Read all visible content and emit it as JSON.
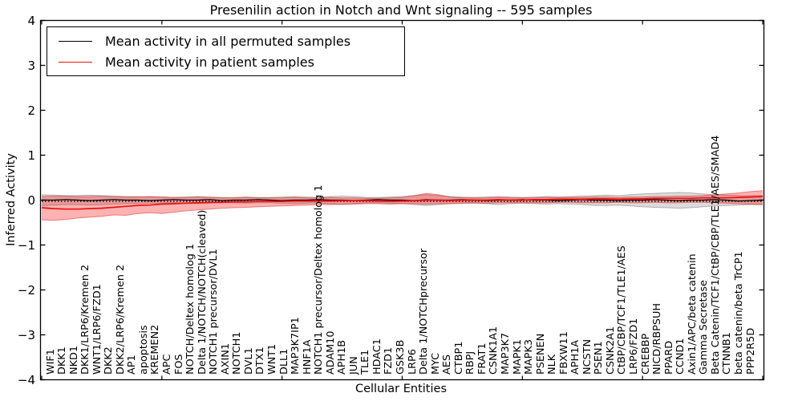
{
  "chart_data": {
    "type": "line",
    "title": "Presenilin action in Notch and Wnt signaling -- 595 samples",
    "xlabel": "Cellular Entities",
    "ylabel": "Inferred Activity",
    "ylim": [
      -4,
      4
    ],
    "ytick_labels": [
      "4",
      "3",
      "2",
      "1",
      "0",
      "−1",
      "−2",
      "−3",
      "−4"
    ],
    "grid": false,
    "legend_position": "upper left",
    "zero_line_style": "dotted",
    "categories": [
      "WIF1",
      "DKK1",
      "NKD1",
      "DKK1/LRP6/Kremen 2",
      "WNT1/LRP6/FZD1",
      "DKK2",
      "DKK2/LRP6/Kremen 2",
      "AP1",
      "apoptosis",
      "KREMEN2",
      "APC",
      "FOS",
      "NOTCH/Deltex homolog 1",
      "Delta 1/NOTCH/NOTCH(cleaved)",
      "NOTCH1 precursor/DVL1",
      "AXIN1",
      "NOTCH1",
      "DVL1",
      "DTX1",
      "WNT1",
      "DLL1",
      "MAP3K7IP1",
      "HNF1A",
      "NOTCH1 precursor/Deltex homolog 1",
      "ADAM10",
      "APH1B",
      "JUN",
      "TLE1",
      "HDAC1",
      "FZD1",
      "GSK3B",
      "LRP6",
      "Delta 1/NOTCHprecursor",
      "MYC",
      "AES",
      "CTBP1",
      "RBPJ",
      "FRAT1",
      "CSNK1A1",
      "MAP3K7",
      "MAPK1",
      "MAPK3",
      "PSENEN",
      "NLK",
      "FBXW11",
      "APH1A",
      "NCSTN",
      "PSEN1",
      "CSNK2A1",
      "CtBP/CBP/TCF1/TLE1/AES",
      "LRP6/FZD1",
      "CREBBP",
      "NICD/RBPSUH",
      "PPARD",
      "CCND1",
      "Axin1/APC/beta catenin",
      "Gamma Secretase",
      "Beta Catenin/TCF1/CtBP/CBP/TLE1/AES/SMAD4",
      "CTNNB1",
      "beta catenin/beta TrCP1",
      "PPP2R5D"
    ],
    "series": [
      {
        "name": "Mean activity in all permuted samples",
        "color": "#000000",
        "band_color": "rgba(0,0,0,0.14)",
        "band_edge_color": "rgba(0,0,0,0.25)",
        "values": [
          0.0,
          0.0,
          0.01,
          0.0,
          -0.01,
          0.0,
          0.01,
          0.0,
          0.0,
          -0.01,
          0.0,
          0.01,
          0.0,
          0.0,
          0.01,
          -0.01,
          0.0,
          0.0,
          0.01,
          0.0,
          -0.01,
          0.0,
          0.0,
          0.01,
          0.0,
          0.0,
          -0.01,
          0.0,
          0.01,
          0.0,
          0.0,
          -0.01,
          0.01,
          0.0,
          0.0,
          0.01,
          0.0,
          -0.01,
          0.0,
          0.0,
          0.01,
          0.0,
          0.0,
          -0.01,
          0.0,
          0.01,
          0.0,
          0.0,
          -0.01,
          0.0,
          0.0,
          0.01,
          0.0,
          -0.01,
          0.0,
          0.0,
          0.01,
          0.0,
          -0.02,
          -0.01,
          0.0
        ],
        "band_upper": [
          0.12,
          0.11,
          0.1,
          0.1,
          0.11,
          0.1,
          0.09,
          0.08,
          0.08,
          0.07,
          0.07,
          0.06,
          0.07,
          0.08,
          0.07,
          0.06,
          0.06,
          0.07,
          0.06,
          0.06,
          0.07,
          0.08,
          0.07,
          0.06,
          0.08,
          0.09,
          0.08,
          0.06,
          0.06,
          0.07,
          0.08,
          0.1,
          0.12,
          0.1,
          0.08,
          0.07,
          0.06,
          0.07,
          0.08,
          0.07,
          0.06,
          0.07,
          0.08,
          0.07,
          0.08,
          0.09,
          0.1,
          0.11,
          0.1,
          0.12,
          0.14,
          0.15,
          0.16,
          0.17,
          0.16,
          0.14,
          0.12,
          0.11,
          0.1,
          0.1,
          0.1
        ],
        "band_lower": [
          -0.12,
          -0.11,
          -0.1,
          -0.1,
          -0.11,
          -0.1,
          -0.09,
          -0.08,
          -0.08,
          -0.07,
          -0.07,
          -0.06,
          -0.07,
          -0.08,
          -0.07,
          -0.06,
          -0.06,
          -0.07,
          -0.06,
          -0.06,
          -0.07,
          -0.08,
          -0.07,
          -0.06,
          -0.08,
          -0.1,
          -0.08,
          -0.06,
          -0.06,
          -0.07,
          -0.08,
          -0.1,
          -0.12,
          -0.1,
          -0.08,
          -0.07,
          -0.06,
          -0.08,
          -0.1,
          -0.08,
          -0.07,
          -0.08,
          -0.09,
          -0.08,
          -0.09,
          -0.1,
          -0.12,
          -0.12,
          -0.11,
          -0.13,
          -0.15,
          -0.16,
          -0.17,
          -0.18,
          -0.17,
          -0.15,
          -0.13,
          -0.12,
          -0.11,
          -0.1,
          -0.1
        ]
      },
      {
        "name": "Mean activity in patient samples",
        "color": "#ee1111",
        "band_color": "rgba(255,0,0,0.30)",
        "band_edge_color": "rgba(222,45,45,0.55)",
        "values": [
          -0.17,
          -0.19,
          -0.2,
          -0.2,
          -0.19,
          -0.18,
          -0.16,
          -0.14,
          -0.12,
          -0.11,
          -0.09,
          -0.08,
          -0.07,
          -0.06,
          -0.05,
          -0.05,
          -0.04,
          -0.04,
          -0.03,
          -0.03,
          -0.03,
          -0.02,
          -0.02,
          -0.02,
          -0.02,
          -0.01,
          -0.01,
          -0.01,
          -0.02,
          -0.03,
          -0.02,
          -0.01,
          0.0,
          0.0,
          -0.01,
          0.0,
          0.0,
          0.0,
          0.01,
          0.0,
          0.0,
          0.01,
          0.01,
          0.02,
          0.02,
          0.02,
          0.03,
          0.03,
          0.02,
          0.03,
          0.03,
          0.04,
          0.04,
          0.04,
          0.04,
          0.05,
          0.05,
          0.05,
          0.06,
          0.07,
          0.08
        ],
        "band_upper": [
          0.08,
          0.09,
          0.09,
          0.08,
          0.08,
          0.09,
          0.08,
          0.07,
          0.07,
          0.08,
          0.07,
          0.06,
          0.06,
          0.07,
          0.06,
          0.05,
          0.05,
          0.06,
          0.05,
          0.05,
          0.05,
          0.06,
          0.05,
          0.05,
          0.06,
          0.05,
          0.05,
          0.04,
          0.04,
          0.05,
          0.06,
          0.1,
          0.15,
          0.12,
          0.07,
          0.05,
          0.05,
          0.05,
          0.06,
          0.05,
          0.05,
          0.05,
          0.06,
          0.06,
          0.06,
          0.06,
          0.07,
          0.07,
          0.06,
          0.07,
          0.07,
          0.08,
          0.08,
          0.09,
          0.09,
          0.1,
          0.12,
          0.14,
          0.16,
          0.19,
          0.21
        ],
        "band_lower": [
          -0.44,
          -0.45,
          -0.43,
          -0.4,
          -0.38,
          -0.36,
          -0.33,
          -0.34,
          -0.3,
          -0.28,
          -0.3,
          -0.27,
          -0.24,
          -0.22,
          -0.2,
          -0.18,
          -0.17,
          -0.16,
          -0.15,
          -0.14,
          -0.13,
          -0.12,
          -0.11,
          -0.1,
          -0.1,
          -0.09,
          -0.09,
          -0.08,
          -0.08,
          -0.09,
          -0.08,
          -0.08,
          -0.09,
          -0.08,
          -0.08,
          -0.07,
          -0.07,
          -0.07,
          -0.06,
          -0.06,
          -0.06,
          -0.06,
          -0.06,
          -0.05,
          -0.05,
          -0.06,
          -0.06,
          -0.06,
          -0.05,
          -0.06,
          -0.06,
          -0.05,
          -0.06,
          -0.06,
          -0.05,
          -0.05,
          -0.06,
          -0.07,
          -0.08,
          -0.09,
          -0.1
        ]
      }
    ],
    "colors": {
      "axis": "#000000",
      "permuted_line": "#000000",
      "patient_line": "#ee1111"
    }
  }
}
